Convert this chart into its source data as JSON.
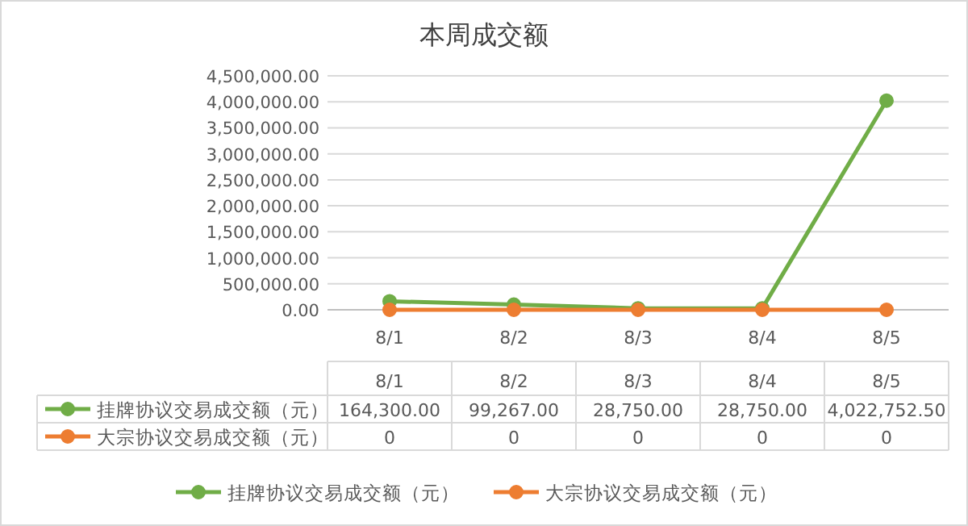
{
  "chart_data": {
    "type": "line",
    "title": "本周成交额",
    "categories": [
      "8/1",
      "8/2",
      "8/3",
      "8/4",
      "8/5"
    ],
    "series": [
      {
        "name": "挂牌协议交易成交额（元）",
        "color": "#70ad47",
        "values": [
          164300.0,
          99267.0,
          28750.0,
          28750.0,
          4022752.5
        ],
        "value_labels": [
          "164,300.00",
          "99,267.00",
          "28,750.00",
          "28,750.00",
          "4,022,752.50"
        ]
      },
      {
        "name": "大宗协议交易成交额（元）",
        "color": "#ed7d31",
        "values": [
          0,
          0,
          0,
          0,
          0
        ],
        "value_labels": [
          "0",
          "0",
          "0",
          "0",
          "0"
        ]
      }
    ],
    "ylim": [
      0,
      4500000
    ],
    "yticks": [
      {
        "value": 0,
        "label": "0.00"
      },
      {
        "value": 500000,
        "label": "500,000.00"
      },
      {
        "value": 1000000,
        "label": "1,000,000.00"
      },
      {
        "value": 1500000,
        "label": "1,500,000.00"
      },
      {
        "value": 2000000,
        "label": "2,000,000.00"
      },
      {
        "value": 2500000,
        "label": "2,500,000.00"
      },
      {
        "value": 3000000,
        "label": "3,000,000.00"
      },
      {
        "value": 3500000,
        "label": "3,500,000.00"
      },
      {
        "value": 4000000,
        "label": "4,000,000.00"
      },
      {
        "value": 4500000,
        "label": "4,500,000.00"
      }
    ],
    "grid": "y",
    "legend": "bottom",
    "marker": "circle",
    "line_style": "solid"
  }
}
